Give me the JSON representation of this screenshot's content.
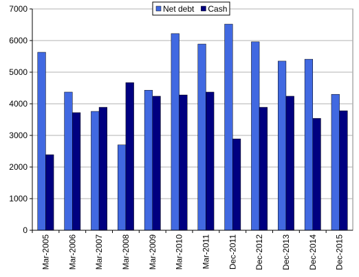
{
  "chart_data": {
    "type": "bar",
    "categories": [
      "Mar-2005",
      "Mar-2006",
      "Mar-2007",
      "Mar-2008",
      "Mar-2009",
      "Mar-2010",
      "Mar-2011",
      "Dec-2011",
      "Dec-2012",
      "Dec-2013",
      "Dec-2014",
      "Dec-2015"
    ],
    "series": [
      {
        "name": "Net debt",
        "color": "#4169e1",
        "values": [
          5630,
          4370,
          3760,
          2700,
          4430,
          6220,
          5890,
          6520,
          5960,
          5350,
          5410,
          4300
        ]
      },
      {
        "name": "Cash",
        "color": "#000080",
        "values": [
          2390,
          3720,
          3890,
          4670,
          4240,
          4280,
          4370,
          2890,
          3890,
          4240,
          3540,
          3780
        ]
      }
    ],
    "ylim": [
      0,
      7000
    ],
    "yticks": [
      0,
      1000,
      2000,
      3000,
      4000,
      5000,
      6000,
      7000
    ],
    "grid": true,
    "legend": "top"
  }
}
